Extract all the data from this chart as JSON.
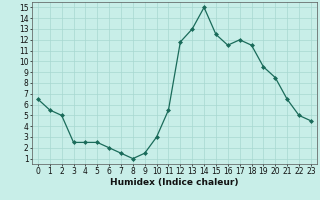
{
  "x": [
    0,
    1,
    2,
    3,
    4,
    5,
    6,
    7,
    8,
    9,
    10,
    11,
    12,
    13,
    14,
    15,
    16,
    17,
    18,
    19,
    20,
    21,
    22,
    23
  ],
  "y": [
    6.5,
    5.5,
    5.0,
    2.5,
    2.5,
    2.5,
    2.0,
    1.5,
    1.0,
    1.5,
    3.0,
    5.5,
    11.8,
    13.0,
    15.0,
    12.5,
    11.5,
    12.0,
    11.5,
    9.5,
    8.5,
    6.5,
    5.0,
    4.5
  ],
  "xlabel": "Humidex (Indice chaleur)",
  "xlim": [
    -0.5,
    23.5
  ],
  "ylim": [
    0.5,
    15.5
  ],
  "yticks": [
    1,
    2,
    3,
    4,
    5,
    6,
    7,
    8,
    9,
    10,
    11,
    12,
    13,
    14,
    15
  ],
  "xticks": [
    0,
    1,
    2,
    3,
    4,
    5,
    6,
    7,
    8,
    9,
    10,
    11,
    12,
    13,
    14,
    15,
    16,
    17,
    18,
    19,
    20,
    21,
    22,
    23
  ],
  "line_color": "#1a6b5a",
  "marker_color": "#1a6b5a",
  "bg_color": "#c8eee8",
  "grid_color": "#a8d8d0",
  "axis_bg": "#c8eee8",
  "xlabel_fontsize": 6.5,
  "tick_fontsize": 5.5,
  "xlabel_bold": true
}
